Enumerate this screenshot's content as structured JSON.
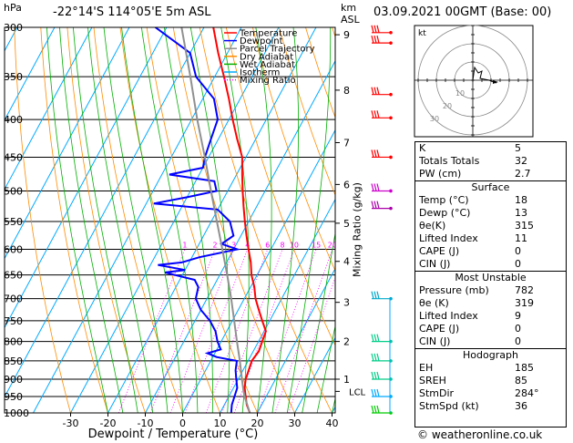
{
  "header": {
    "pressure_unit": "hPa",
    "location": "-22°14'S 114°05'E 5m ASL",
    "height_unit": "km",
    "height_unit_sub": "ASL",
    "datetime": "03.09.2021 00GMT (Base: 00)"
  },
  "legend": {
    "items": [
      {
        "label": "Temperature",
        "color": "#ff0000",
        "style": "solid"
      },
      {
        "label": "Dewpoint",
        "color": "#0000ff",
        "style": "solid"
      },
      {
        "label": "Parcel Trajectory",
        "color": "#909090",
        "style": "solid"
      },
      {
        "label": "Dry Adiabat",
        "color": "#ff8c00",
        "style": "solid"
      },
      {
        "label": "Wet Adiabat",
        "color": "#00b000",
        "style": "solid"
      },
      {
        "label": "Isotherm",
        "color": "#00aaff",
        "style": "solid"
      },
      {
        "label": "Mixing Ratio",
        "color": "#ff00ff",
        "style": "dotted"
      }
    ]
  },
  "chart_data": {
    "type": "line",
    "chart_kind": "skew-T log-P diagram",
    "xlabel": "Dewpoint / Temperature (°C)",
    "ylabel_right": "Mixing Ratio (g/kg)",
    "x_ticks": [
      -30,
      -20,
      -10,
      0,
      10,
      20,
      30,
      40
    ],
    "pressure_levels": [
      300,
      350,
      400,
      450,
      500,
      550,
      600,
      650,
      700,
      750,
      800,
      850,
      900,
      950,
      1000
    ],
    "km_ticks": [
      {
        "label": "9",
        "p": 307
      },
      {
        "label": "8",
        "p": 365
      },
      {
        "label": "7",
        "p": 430
      },
      {
        "label": "6",
        "p": 490
      },
      {
        "label": "5",
        "p": 553
      },
      {
        "label": "4",
        "p": 623
      },
      {
        "label": "3",
        "p": 708
      },
      {
        "label": "2",
        "p": 800
      },
      {
        "label": "1",
        "p": 900
      }
    ],
    "lcl": {
      "label": "LCL",
      "p": 935
    },
    "mixing_ratio_labels": [
      "1",
      "2",
      "3",
      "4",
      "6",
      "8",
      "10",
      "15",
      "20",
      "25"
    ],
    "mixing_ratio_values": [
      1,
      2,
      3,
      4,
      6,
      8,
      10,
      15,
      20,
      25
    ],
    "series": [
      {
        "name": "Temperature",
        "color": "#ff0000",
        "points": [
          [
            1000,
            18
          ],
          [
            975,
            16
          ],
          [
            950,
            14.5
          ],
          [
            925,
            13
          ],
          [
            900,
            12
          ],
          [
            875,
            11.5
          ],
          [
            850,
            11
          ],
          [
            825,
            11.5
          ],
          [
            800,
            11
          ],
          [
            775,
            10.5
          ],
          [
            750,
            8
          ],
          [
            725,
            5.5
          ],
          [
            700,
            3
          ],
          [
            675,
            1
          ],
          [
            650,
            -1.5
          ],
          [
            625,
            -3.5
          ],
          [
            600,
            -6
          ],
          [
            575,
            -8.5
          ],
          [
            550,
            -11
          ],
          [
            525,
            -13.5
          ],
          [
            500,
            -16
          ],
          [
            475,
            -18.5
          ],
          [
            450,
            -21
          ],
          [
            425,
            -25
          ],
          [
            400,
            -29
          ],
          [
            375,
            -33
          ],
          [
            350,
            -37.5
          ],
          [
            325,
            -42.5
          ],
          [
            300,
            -47.5
          ]
        ]
      },
      {
        "name": "Dewpoint",
        "color": "#0000ff",
        "points": [
          [
            1000,
            13
          ],
          [
            975,
            12
          ],
          [
            950,
            11.5
          ],
          [
            925,
            11
          ],
          [
            900,
            9.5
          ],
          [
            875,
            8
          ],
          [
            850,
            7
          ],
          [
            840,
            1
          ],
          [
            830,
            -2
          ],
          [
            820,
            1
          ],
          [
            800,
            -1
          ],
          [
            775,
            -3
          ],
          [
            750,
            -6
          ],
          [
            725,
            -10
          ],
          [
            700,
            -13
          ],
          [
            675,
            -14
          ],
          [
            660,
            -16
          ],
          [
            650,
            -22
          ],
          [
            645,
            -25
          ],
          [
            640,
            -20
          ],
          [
            630,
            -28
          ],
          [
            625,
            -22
          ],
          [
            615,
            -18
          ],
          [
            600,
            -9
          ],
          [
            590,
            -14
          ],
          [
            575,
            -12
          ],
          [
            550,
            -15
          ],
          [
            530,
            -20
          ],
          [
            520,
            -38
          ],
          [
            510,
            -30
          ],
          [
            500,
            -23
          ],
          [
            485,
            -25
          ],
          [
            475,
            -38
          ],
          [
            465,
            -30
          ],
          [
            450,
            -31
          ],
          [
            425,
            -32
          ],
          [
            400,
            -33
          ],
          [
            375,
            -37
          ],
          [
            350,
            -45
          ],
          [
            325,
            -50
          ],
          [
            300,
            -63
          ]
        ]
      },
      {
        "name": "Parcel Trajectory",
        "color": "#909090",
        "points": [
          [
            1000,
            18
          ],
          [
            950,
            14.2
          ],
          [
            935,
            13.2
          ],
          [
            900,
            11
          ],
          [
            850,
            7.8
          ],
          [
            800,
            4.2
          ],
          [
            750,
            0.5
          ],
          [
            700,
            -3.5
          ],
          [
            650,
            -8
          ],
          [
            600,
            -13
          ],
          [
            550,
            -18.5
          ],
          [
            500,
            -24.5
          ],
          [
            450,
            -31
          ],
          [
            400,
            -38.5
          ],
          [
            350,
            -46.5
          ],
          [
            300,
            -56
          ]
        ]
      }
    ]
  },
  "wind_barbs": {
    "color_levels": [
      {
        "p": 305,
        "color": "#ff0000"
      },
      {
        "p": 315,
        "color": "#ff0000"
      },
      {
        "p": 370,
        "color": "#ff0000"
      },
      {
        "p": 398,
        "color": "#ff0000"
      },
      {
        "p": 450,
        "color": "#ff0000"
      },
      {
        "p": 500,
        "color": "#cc00cc"
      },
      {
        "p": 528,
        "color": "#aa00aa"
      },
      {
        "p": 700,
        "color": "#00aacc"
      },
      {
        "p": 800,
        "color": "#00cc88"
      },
      {
        "p": 850,
        "color": "#00cc88"
      },
      {
        "p": 900,
        "color": "#00cc88"
      },
      {
        "p": 950,
        "color": "#00aaff"
      },
      {
        "p": 1000,
        "color": "#00cc00"
      }
    ]
  },
  "hodograph": {
    "unit_label": "kt",
    "ring_labels": [
      "10",
      "20",
      "30"
    ]
  },
  "indices": {
    "top": [
      {
        "label": "K",
        "value": "5"
      },
      {
        "label": "Totals Totals",
        "value": "32"
      },
      {
        "label": "PW (cm)",
        "value": "2.7"
      }
    ],
    "surface": {
      "title": "Surface",
      "rows": [
        {
          "label": "Temp (°C)",
          "value": "18"
        },
        {
          "label": "Dewp (°C)",
          "value": "13"
        },
        {
          "label": "θe(K)",
          "value": "315"
        },
        {
          "label": "Lifted Index",
          "value": "11"
        },
        {
          "label": "CAPE (J)",
          "value": "0"
        },
        {
          "label": "CIN (J)",
          "value": "0"
        }
      ]
    },
    "most_unstable": {
      "title": "Most Unstable",
      "rows": [
        {
          "label": "Pressure (mb)",
          "value": "782"
        },
        {
          "label": "θe (K)",
          "value": "319"
        },
        {
          "label": "Lifted Index",
          "value": "9"
        },
        {
          "label": "CAPE (J)",
          "value": "0"
        },
        {
          "label": "CIN (J)",
          "value": "0"
        }
      ]
    },
    "hodograph_box": {
      "title": "Hodograph",
      "rows": [
        {
          "label": "EH",
          "value": "185"
        },
        {
          "label": "SREH",
          "value": "85"
        },
        {
          "label": "StmDir",
          "value": "284°"
        },
        {
          "label": "StmSpd (kt)",
          "value": "36"
        }
      ]
    }
  },
  "footer": {
    "copyright": "© weatheronline.co.uk"
  }
}
